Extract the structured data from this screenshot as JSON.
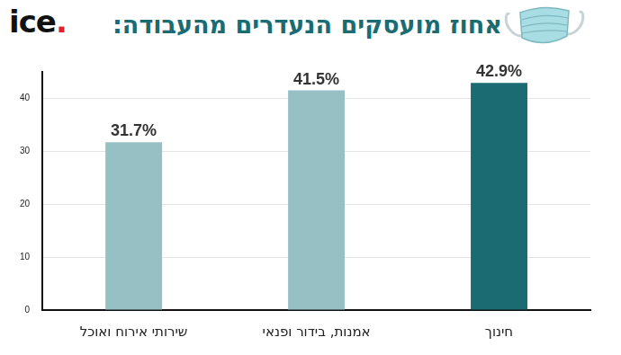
{
  "logo": "ice.",
  "chart_data": {
    "type": "bar",
    "title": "אחוז מועסקים הנעדרים מהעבודה:",
    "categories": [
      "שירותי אירוח ואוכל",
      "אמנות, בידור ופנאי",
      "חינוך"
    ],
    "values": [
      31.7,
      41.5,
      42.9
    ],
    "value_labels": [
      "31.7%",
      "41.5%",
      "42.9%"
    ],
    "colors": [
      "#96c0c4",
      "#96c0c4",
      "#1a6b72"
    ],
    "ylim": [
      0,
      45
    ],
    "yticks": [
      0,
      10,
      20,
      30,
      40
    ],
    "grid": true,
    "data_labels": true
  }
}
